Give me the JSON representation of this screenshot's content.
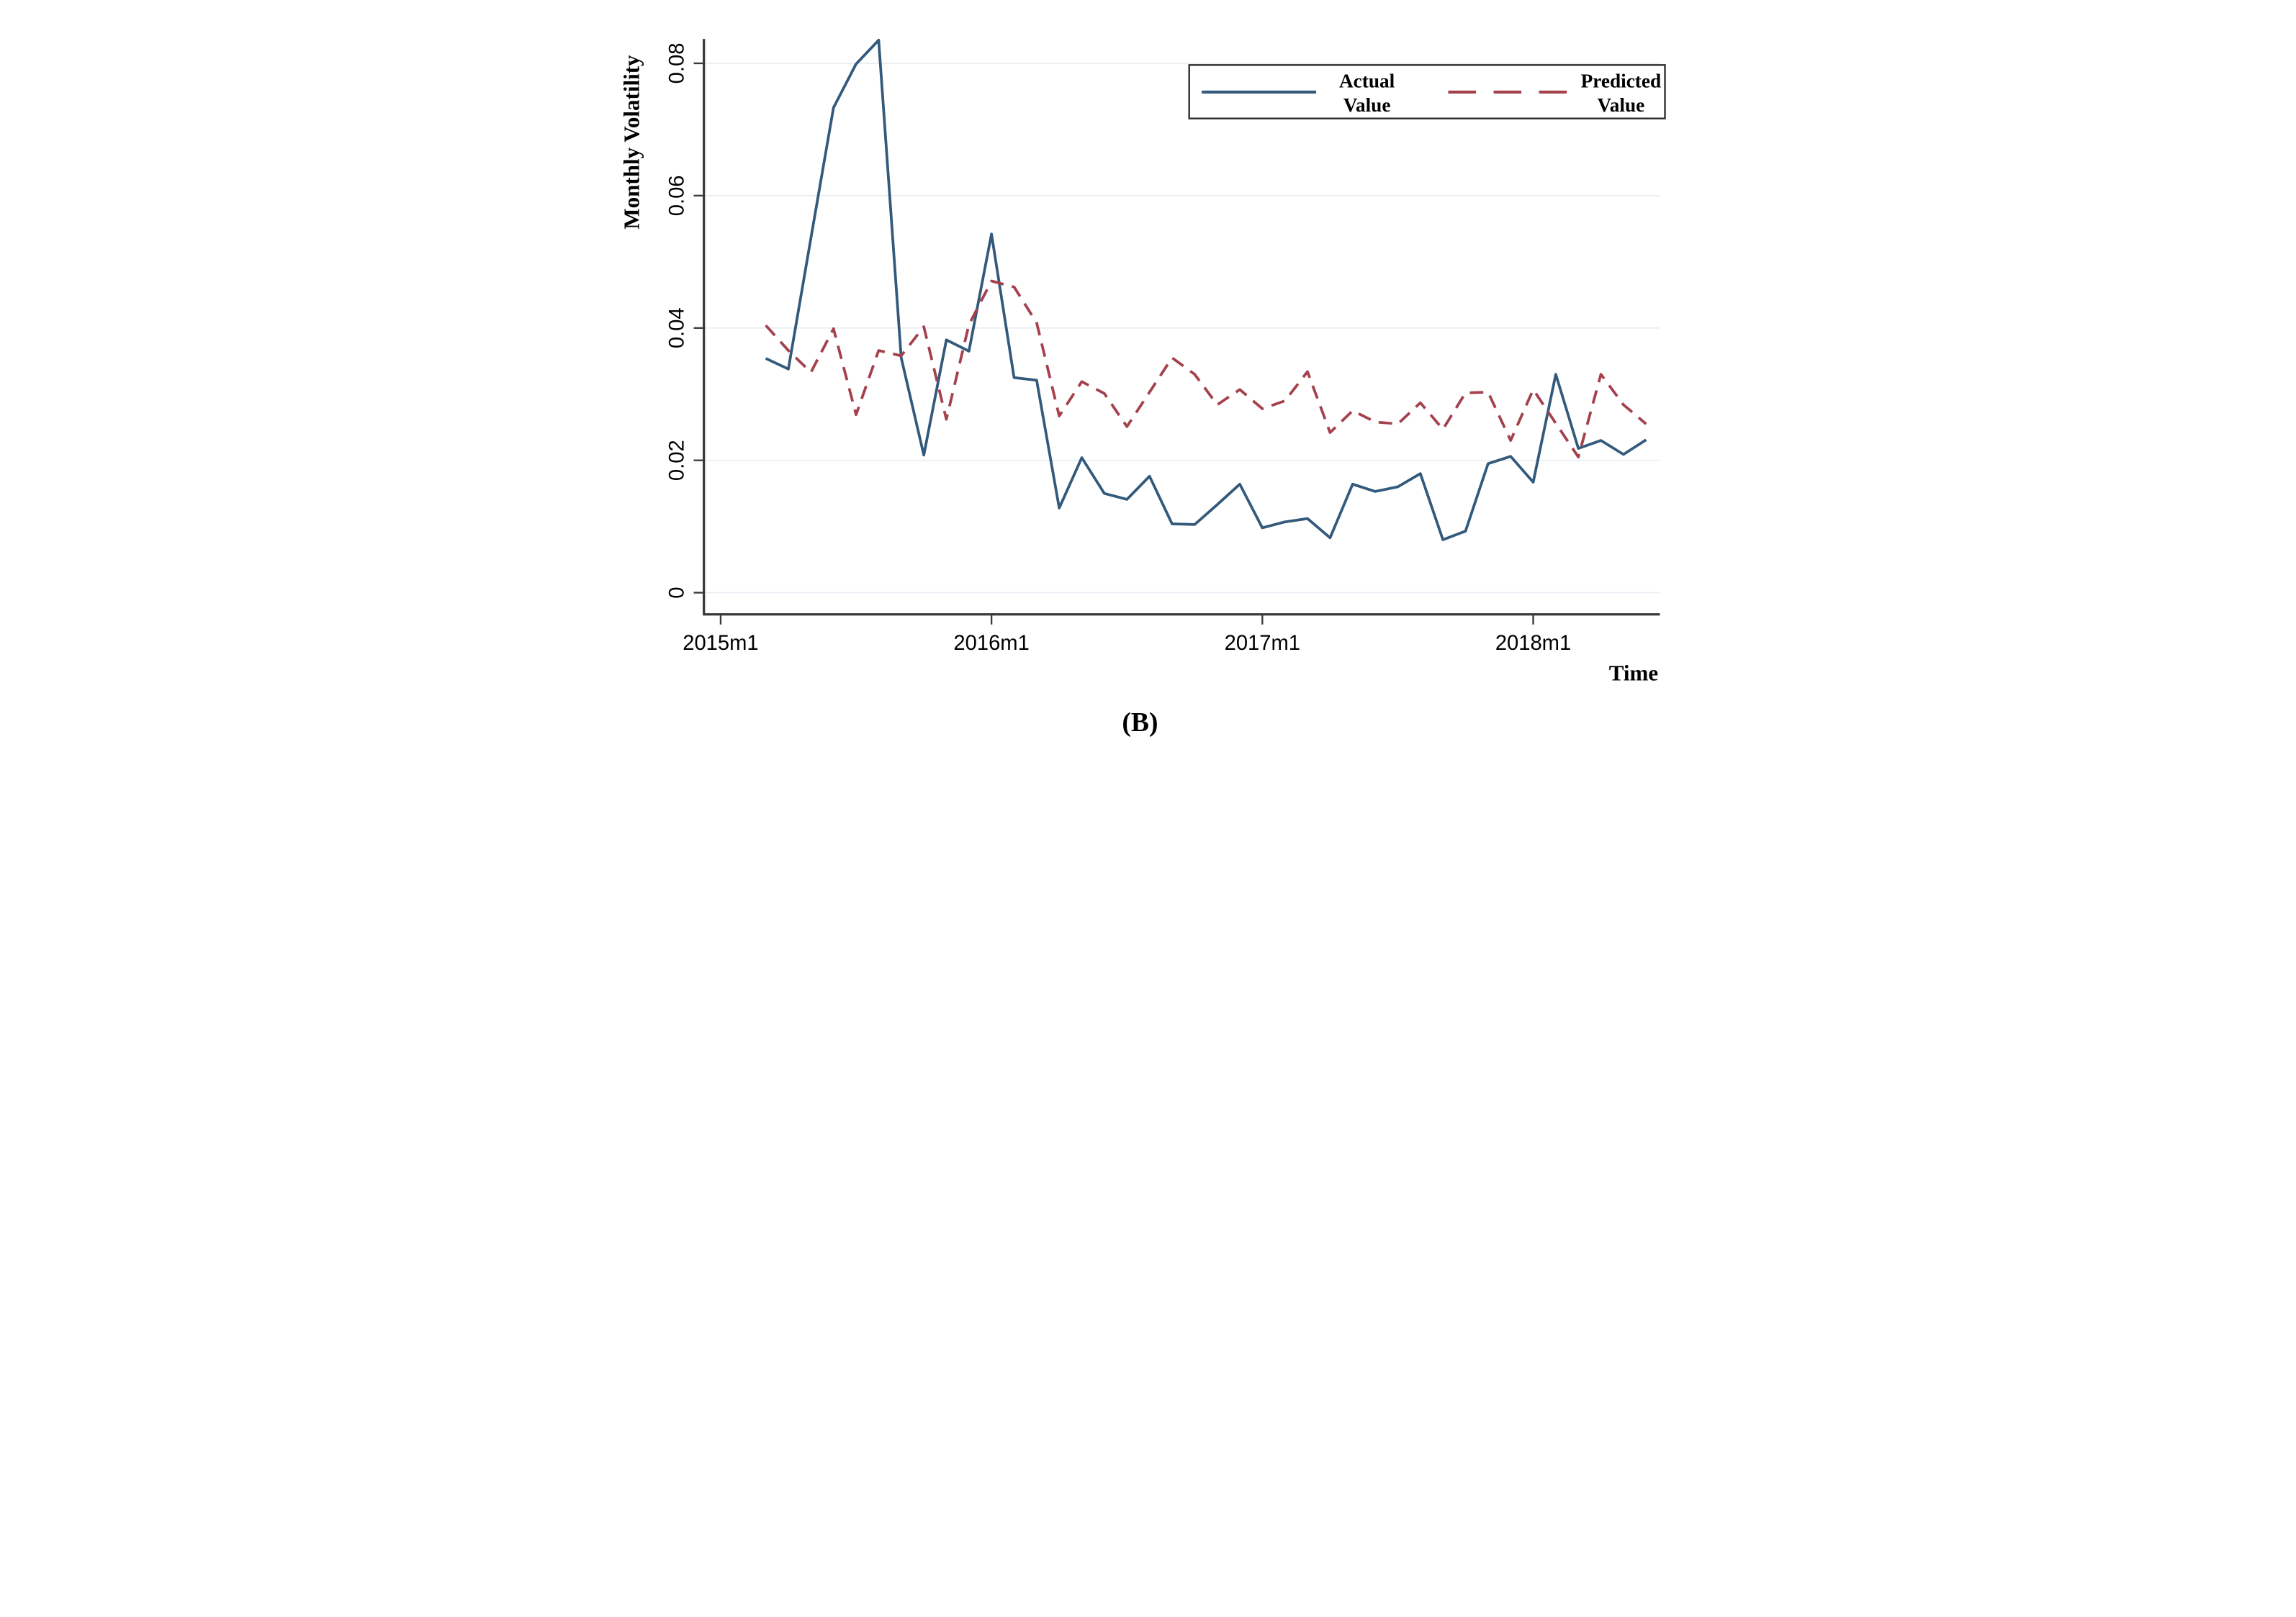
{
  "figure": {
    "caption": "(B)"
  },
  "colors": {
    "actual_line": "#33597b",
    "predicted_line": "#a4414d",
    "gridline": "#e6edf2",
    "axis": "#3a3a3a",
    "legend_border": "#2a2a2a",
    "background": "#ffffff",
    "text": "#000000"
  },
  "chart_data": {
    "type": "line",
    "title": "",
    "xlabel": "Time",
    "ylabel": "Monthly Volatility",
    "grid": true,
    "legend_position": "top-right",
    "ylim": [
      0,
      0.0875
    ],
    "y_ticks": [
      0,
      0.02,
      0.04,
      0.06,
      0.08
    ],
    "y_tick_labels": [
      "0",
      "0.02",
      "0.04",
      "0.06",
      "0.08"
    ],
    "x_tick_labels": [
      "2015m1",
      "2016m1",
      "2017m1",
      "2018m1"
    ],
    "x_tick_month_offsets": [
      0,
      12,
      24,
      36
    ],
    "first_point_month_offset": 2,
    "x": [
      "2015m3",
      "2015m4",
      "2015m5",
      "2015m6",
      "2015m7",
      "2015m8",
      "2015m9",
      "2015m10",
      "2015m11",
      "2015m12",
      "2016m1",
      "2016m2",
      "2016m3",
      "2016m4",
      "2016m5",
      "2016m6",
      "2016m7",
      "2016m8",
      "2016m9",
      "2016m10",
      "2016m11",
      "2016m12",
      "2017m1",
      "2017m2",
      "2017m3",
      "2017m4",
      "2017m5",
      "2017m6",
      "2017m7",
      "2017m8",
      "2017m9",
      "2017m10",
      "2017m11",
      "2017m12",
      "2018m1",
      "2018m2",
      "2018m3",
      "2018m4",
      "2018m5",
      "2018m6"
    ],
    "series": [
      {
        "name": "Actual Value",
        "legend_line1": "Actual",
        "legend_line2": "Value",
        "style": "solid",
        "color": "#33597b",
        "values": [
          0.0354,
          0.0338,
          0.0536,
          0.0733,
          0.0799,
          0.0835,
          0.0355,
          0.0208,
          0.0382,
          0.0365,
          0.0542,
          0.0325,
          0.0321,
          0.0128,
          0.0204,
          0.015,
          0.0141,
          0.0176,
          0.0104,
          0.0103,
          0.0133,
          0.0164,
          0.0098,
          0.0107,
          0.0112,
          0.0083,
          0.0164,
          0.0153,
          0.016,
          0.018,
          0.008,
          0.0093,
          0.0195,
          0.0206,
          0.0167,
          0.033,
          0.0218,
          0.023,
          0.0209,
          0.0231
        ]
      },
      {
        "name": "Predicted Value",
        "legend_line1": "Predicted",
        "legend_line2": "Value",
        "style": "dashed",
        "color": "#a4414d",
        "values": [
          0.0404,
          0.0366,
          0.0333,
          0.0399,
          0.0269,
          0.0366,
          0.0358,
          0.0402,
          0.0262,
          0.0405,
          0.0471,
          0.0462,
          0.0408,
          0.0267,
          0.0319,
          0.0301,
          0.0251,
          0.0303,
          0.0355,
          0.033,
          0.0284,
          0.0307,
          0.0278,
          0.029,
          0.0334,
          0.0242,
          0.0275,
          0.0258,
          0.0255,
          0.0287,
          0.0247,
          0.0302,
          0.0303,
          0.023,
          0.0307,
          0.0256,
          0.0205,
          0.033,
          0.0284,
          0.0255
        ]
      }
    ]
  }
}
